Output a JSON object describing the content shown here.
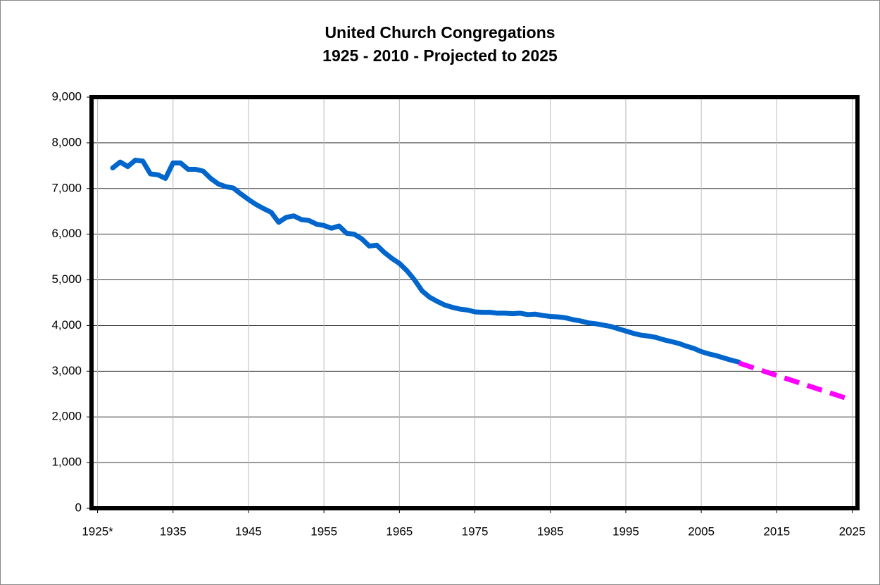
{
  "chart_data": {
    "type": "line",
    "title": [
      "United Church Congregations",
      "1925 - 2010 - Projected to 2025"
    ],
    "xlim": [
      1924.2,
      2025.7
    ],
    "xticks": [
      {
        "value": 1925,
        "label": "1925*"
      },
      1935,
      1945,
      1955,
      1965,
      1975,
      1985,
      1995,
      2005,
      2015,
      2025
    ],
    "ylim": [
      0,
      9000
    ],
    "yticks": [
      0,
      {
        "value": 1000,
        "label": "1,000"
      },
      {
        "value": 2000,
        "label": "2,000"
      },
      {
        "value": 3000,
        "label": "3,000"
      },
      {
        "value": 4000,
        "label": "4,000"
      },
      {
        "value": 5000,
        "label": "5,000"
      },
      {
        "value": 6000,
        "label": "6,000"
      },
      {
        "value": 7000,
        "label": "7,000"
      },
      {
        "value": 8000,
        "label": "8,000"
      },
      {
        "value": 9000,
        "label": "9,000"
      }
    ],
    "grid": true,
    "series": [
      {
        "color": "#0066cc",
        "dashed": false,
        "x": [
          1927,
          1928,
          1929,
          1930,
          1931,
          1932,
          1933,
          1934,
          1935,
          1936,
          1937,
          1938,
          1939,
          1940,
          1941,
          1942,
          1943,
          1944,
          1945,
          1946,
          1947,
          1948,
          1949,
          1950,
          1951,
          1952,
          1953,
          1954,
          1955,
          1956,
          1957,
          1958,
          1959,
          1960,
          1961,
          1962,
          1963,
          1964,
          1965,
          1966,
          1967,
          1968,
          1969,
          1970,
          1971,
          1972,
          1973,
          1974,
          1975,
          1976,
          1977,
          1978,
          1979,
          1980,
          1981,
          1982,
          1983,
          1984,
          1985,
          1986,
          1987,
          1988,
          1989,
          1990,
          1991,
          1992,
          1993,
          1994,
          1995,
          1996,
          1997,
          1998,
          1999,
          2000,
          2001,
          2002,
          2003,
          2004,
          2005,
          2006,
          2007,
          2008,
          2009,
          2010
        ],
        "values": [
          7450,
          7580,
          7480,
          7620,
          7600,
          7320,
          7300,
          7220,
          7560,
          7560,
          7420,
          7420,
          7380,
          7220,
          7100,
          7040,
          7010,
          6880,
          6760,
          6650,
          6560,
          6480,
          6260,
          6370,
          6400,
          6320,
          6300,
          6220,
          6190,
          6130,
          6180,
          6020,
          6000,
          5900,
          5740,
          5760,
          5600,
          5470,
          5360,
          5200,
          5000,
          4760,
          4620,
          4530,
          4450,
          4400,
          4360,
          4340,
          4300,
          4290,
          4290,
          4270,
          4270,
          4260,
          4270,
          4240,
          4250,
          4220,
          4200,
          4190,
          4170,
          4130,
          4100,
          4060,
          4040,
          4010,
          3980,
          3930,
          3880,
          3830,
          3790,
          3770,
          3740,
          3690,
          3650,
          3610,
          3550,
          3500,
          3430,
          3380,
          3340,
          3290,
          3240,
          3200
        ]
      },
      {
        "color": "#ff00ff",
        "dashed": true,
        "x": [
          2010,
          2024
        ],
        "values": [
          3180,
          2420
        ]
      }
    ]
  }
}
